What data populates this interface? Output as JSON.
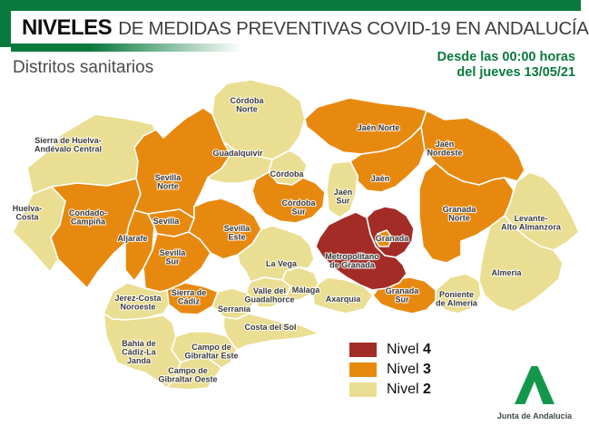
{
  "header": {
    "brand": "NIVELES",
    "title": "DE MEDIDAS PREVENTIVAS COVID-19 EN ANDALUCÍA",
    "subtitle": "Distritos sanitarios",
    "effective_line1": "Desde las 00:00 horas",
    "effective_line2": "del jueves 13/05/21"
  },
  "colors": {
    "brand_green": "#0A7A3C",
    "logo_green": "#13984B",
    "label_gray": "#3B3B3B"
  },
  "levels": {
    "2": {
      "label": "Nivel 2",
      "color": "#EADE92"
    },
    "3": {
      "label": "Nivel 3",
      "color": "#E8890F"
    },
    "4": {
      "label": "Nivel 4",
      "color": "#A32C26"
    }
  },
  "legend": {
    "items": [
      {
        "prefix": "Nivel",
        "num": "4",
        "level": "4"
      },
      {
        "prefix": "Nivel",
        "num": "3",
        "level": "3"
      },
      {
        "prefix": "Nivel",
        "num": "2",
        "level": "2"
      }
    ]
  },
  "map": {
    "districts": [
      {
        "id": "sierra-huelva",
        "name": "Sierra de Huelva-Andévalo Central",
        "level": "2",
        "lines": [
          "Sierra de Huelva-",
          "Andévalo Central"
        ]
      },
      {
        "id": "huelva-costa",
        "name": "Huelva-Costa",
        "level": "2",
        "lines": [
          "Huelva-",
          "Costa"
        ]
      },
      {
        "id": "condado",
        "name": "Condado-Campiña",
        "level": "3",
        "lines": [
          "Condado-",
          "Campiña"
        ]
      },
      {
        "id": "aljarafe",
        "name": "Aljarafe",
        "level": "3",
        "lines": [
          "Aljarafe"
        ]
      },
      {
        "id": "sevilla-norte",
        "name": "Sevilla Norte",
        "level": "3",
        "lines": [
          "Sevilla",
          "Norte"
        ]
      },
      {
        "id": "sevilla",
        "name": "Sevilla",
        "level": "3",
        "lines": [
          "Sevilla"
        ]
      },
      {
        "id": "sevilla-este",
        "name": "Sevilla Este",
        "level": "3",
        "lines": [
          "Sevilla",
          "Este"
        ]
      },
      {
        "id": "sevilla-sur",
        "name": "Sevilla Sur",
        "level": "3",
        "lines": [
          "Sevilla",
          "Sur"
        ]
      },
      {
        "id": "cordoba-norte",
        "name": "Córdoba Norte",
        "level": "2",
        "lines": [
          "Córdoba",
          "Norte"
        ]
      },
      {
        "id": "guadalquivir",
        "name": "Guadalquivir",
        "level": "2",
        "lines": [
          "Guadalquivir"
        ]
      },
      {
        "id": "cordoba",
        "name": "Córdoba",
        "level": "2",
        "lines": [
          "Córdoba"
        ]
      },
      {
        "id": "cordoba-sur",
        "name": "Córdoba Sur",
        "level": "3",
        "lines": [
          "Córdoba",
          "Sur"
        ]
      },
      {
        "id": "jaen-norte",
        "name": "Jaén Norte",
        "level": "3",
        "lines": [
          "Jaén Norte"
        ]
      },
      {
        "id": "jaen-nordeste",
        "name": "Jaén Nordeste",
        "level": "3",
        "lines": [
          "Jaén",
          "Nordeste"
        ]
      },
      {
        "id": "jaen",
        "name": "Jaén",
        "level": "3",
        "lines": [
          "Jaén"
        ]
      },
      {
        "id": "jaen-sur",
        "name": "Jaén Sur",
        "level": "2",
        "lines": [
          "Jaén",
          "Sur"
        ]
      },
      {
        "id": "granada-norte",
        "name": "Granada Norte",
        "level": "3",
        "lines": [
          "Granada",
          "Norte"
        ]
      },
      {
        "id": "levante",
        "name": "Levante-Alto Almanzora",
        "level": "2",
        "lines": [
          "Levante-",
          "Alto Almanzora"
        ]
      },
      {
        "id": "almeria",
        "name": "Almería",
        "level": "2",
        "lines": [
          "Almería"
        ]
      },
      {
        "id": "poniente",
        "name": "Poniente de Almería",
        "level": "2",
        "lines": [
          "Poniente",
          "de Almería"
        ]
      },
      {
        "id": "granada-sur",
        "name": "Granada Sur",
        "level": "3",
        "lines": [
          "Granada",
          "Sur"
        ]
      },
      {
        "id": "la-vega",
        "name": "La Vega",
        "level": "2",
        "lines": [
          "La Vega"
        ]
      },
      {
        "id": "valle",
        "name": "Valle del Guadalhorce",
        "level": "2",
        "lines": [
          "Valle del",
          "Guadalhorce"
        ]
      },
      {
        "id": "malaga",
        "name": "Málaga",
        "level": "2",
        "lines": [
          "Málaga"
        ]
      },
      {
        "id": "axarquia",
        "name": "Axarquía",
        "level": "2",
        "lines": [
          "Axarquía"
        ]
      },
      {
        "id": "serrania",
        "name": "Serranía",
        "level": "2",
        "lines": [
          "Serranía"
        ]
      },
      {
        "id": "costa-sol",
        "name": "Costa del Sol",
        "level": "2",
        "lines": [
          "Costa del Sol"
        ]
      },
      {
        "id": "jerez",
        "name": "Jerez-Costa Noroeste",
        "level": "2",
        "lines": [
          "Jerez-Costa",
          "Noroeste"
        ]
      },
      {
        "id": "sierra-cadiz",
        "name": "Sierra de Cádiz",
        "level": "3",
        "lines": [
          "Sierra de",
          "Cádiz"
        ]
      },
      {
        "id": "bahia",
        "name": "Bahía de Cádiz-La Janda",
        "level": "2",
        "lines": [
          "Bahía de",
          "Cádiz-La",
          "Janda"
        ]
      },
      {
        "id": "campo-este",
        "name": "Campo de Gibraltar Este",
        "level": "2",
        "lines": [
          "Campo de",
          "Gibraltar Este"
        ]
      },
      {
        "id": "campo-oeste",
        "name": "Campo de Gibraltar Oeste",
        "level": "2",
        "lines": [
          "Campo de",
          "Gibraltar Oeste"
        ]
      },
      {
        "id": "granada-red",
        "name": "Granada",
        "level": "4",
        "lines": [
          "Granada"
        ]
      },
      {
        "id": "metropolitano",
        "name": "Metropolitano de Granada",
        "level": "4",
        "lines": [
          "Metropolitano",
          "de Granada"
        ]
      },
      {
        "id": "granada-enclave",
        "name": "",
        "level": "3",
        "lines": []
      }
    ]
  },
  "footer": {
    "logo_text": "Junta de Andalucía"
  }
}
